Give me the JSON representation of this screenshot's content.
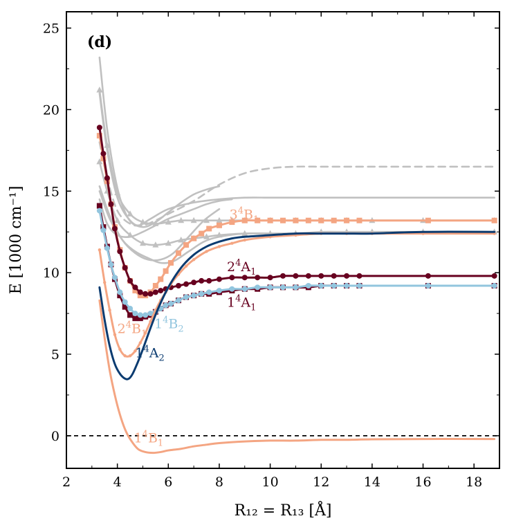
{
  "chart_data": {
    "type": "line",
    "panel_label": "(d)",
    "xlabel": "R₁₂ = R₁₃ [Å]",
    "ylabel": "E [1000 cm⁻¹]",
    "xlim": [
      2,
      19
    ],
    "ylim": [
      -2,
      26
    ],
    "xticks": [
      2,
      4,
      6,
      8,
      10,
      12,
      14,
      16,
      18
    ],
    "yticks": [
      0,
      5,
      10,
      15,
      20,
      25
    ],
    "zero_line": true,
    "colors": {
      "1 4B1": "#f4a582",
      "1 4A2": "#0b3b70",
      "2 4B1": "#f4a582",
      "1 4B2": "#92c5de",
      "1 4A1": "#67001f",
      "2 4A1": "#67001f",
      "3 4B1": "#f4a582",
      "gray": "#c0c0c0"
    },
    "series": [
      {
        "key": "g1",
        "color": "#c0c0c0",
        "style": "solid",
        "marker": "none",
        "x": [
          3.3,
          3.6,
          4.0,
          4.4,
          4.8,
          5.3,
          6.0,
          7.0,
          8.0,
          9.0,
          10.0,
          11.0,
          12.0,
          13.0,
          14.0,
          16.0,
          18.8
        ],
        "y": [
          23.2,
          18.8,
          15.2,
          13.4,
          12.9,
          13.3,
          13.9,
          14.3,
          14.5,
          14.6,
          14.6,
          14.6,
          14.6,
          14.6,
          14.6,
          14.6,
          14.6
        ]
      },
      {
        "key": "g2",
        "color": "#c0c0c0",
        "style": "dashed",
        "marker": "none",
        "x": [
          3.3,
          3.6,
          4.0,
          4.5,
          5.0,
          5.5,
          6.0,
          7.0,
          8.0,
          9.0,
          10.0,
          11.0,
          12.0,
          13.0,
          14.0,
          16.0,
          18.8
        ],
        "y": [
          18.0,
          15.8,
          13.8,
          13.0,
          12.9,
          13.2,
          13.6,
          14.4,
          15.4,
          16.1,
          16.4,
          16.5,
          16.5,
          16.5,
          16.5,
          16.5,
          16.5
        ]
      },
      {
        "key": "g3",
        "color": "#c0c0c0",
        "style": "solid",
        "marker": "none",
        "x": [
          3.3,
          3.6,
          4.0,
          4.5,
          5.0,
          5.5,
          6.0,
          6.5,
          7.0,
          7.5,
          8.0
        ],
        "y": [
          21.0,
          17.5,
          14.6,
          13.2,
          12.8,
          13.1,
          13.7,
          14.3,
          14.8,
          15.1,
          15.3
        ]
      },
      {
        "key": "g4",
        "color": "#c0c0c0",
        "style": "solid",
        "marker": "triangle",
        "x": [
          3.3,
          3.6,
          4.0,
          4.5,
          5.0,
          5.5,
          6.0,
          6.5,
          7.0,
          7.5,
          8.0,
          8.5,
          9.0,
          9.5,
          10.0,
          11.0,
          12.0,
          13.0,
          14.0,
          16.0,
          18.8
        ],
        "y": [
          21.2,
          17.8,
          14.9,
          13.6,
          13.1,
          13.0,
          13.1,
          13.2,
          13.2,
          13.2,
          13.2,
          13.2,
          13.2,
          13.2,
          13.2,
          13.2,
          13.2,
          13.2,
          13.2,
          13.2,
          13.2
        ]
      },
      {
        "key": "g5",
        "color": "#c0c0c0",
        "style": "solid",
        "marker": "none",
        "x": [
          3.3,
          3.7,
          4.2,
          4.7,
          5.2,
          5.7,
          6.2,
          6.8,
          7.4,
          8.0
        ],
        "y": [
          15.3,
          13.5,
          12.0,
          11.2,
          10.8,
          10.8,
          11.2,
          12.2,
          13.2,
          13.9
        ]
      },
      {
        "key": "g6",
        "color": "#c0c0c0",
        "style": "solid",
        "marker": "none",
        "x": [
          3.3,
          3.7,
          4.2,
          4.7,
          5.2,
          5.7,
          6.2,
          6.8,
          7.4,
          8.0,
          9.0,
          10.0,
          11.0,
          12.0,
          13.0,
          14.0,
          16.0,
          18.8
        ],
        "y": [
          15.0,
          13.3,
          12.0,
          11.3,
          10.9,
          10.6,
          10.7,
          11.3,
          11.9,
          12.2,
          12.4,
          12.4,
          12.4,
          12.4,
          12.4,
          12.4,
          12.4,
          12.4
        ]
      },
      {
        "key": "g7",
        "color": "#c0c0c0",
        "style": "solid",
        "marker": "triangle",
        "x": [
          3.3,
          3.6,
          4.0,
          4.5,
          5.0,
          5.5,
          6.0,
          6.5,
          7.0,
          7.5,
          8.0,
          9.0,
          10.0,
          11.0,
          12.0,
          13.0,
          14.0,
          16.0,
          18.8
        ],
        "y": [
          16.8,
          15.0,
          13.2,
          12.3,
          11.8,
          11.7,
          11.8,
          12.0,
          12.1,
          12.2,
          12.3,
          12.4,
          12.4,
          12.4,
          12.5,
          12.5,
          12.5,
          12.5,
          12.5
        ]
      },
      {
        "key": "g8",
        "color": "#c0c0c0",
        "style": "solid",
        "marker": "none",
        "x": [
          3.3,
          3.6,
          4.0,
          4.5,
          5.0,
          5.5,
          6.0,
          6.5,
          7.0,
          7.5,
          8.0,
          8.5
        ],
        "y": [
          14.5,
          13.0,
          12.3,
          12.2,
          12.5,
          12.9,
          13.3,
          13.6,
          13.9,
          14.2,
          14.4,
          14.5
        ]
      },
      {
        "key": "3 4B1",
        "color": "#f4a582",
        "style": "solid",
        "marker": "square",
        "x": [
          3.3,
          3.45,
          3.6,
          3.75,
          3.9,
          4.1,
          4.3,
          4.5,
          4.7,
          4.9,
          5.1,
          5.3,
          5.5,
          5.7,
          5.9,
          6.1,
          6.4,
          6.7,
          7.0,
          7.3,
          7.6,
          8.0,
          8.5,
          9.0,
          9.5,
          10.0,
          10.5,
          11.0,
          11.5,
          12.0,
          12.5,
          13.0,
          13.5,
          16.2,
          18.8
        ],
        "y": [
          18.4,
          17.0,
          15.6,
          14.2,
          12.8,
          11.4,
          10.3,
          9.5,
          8.9,
          8.6,
          8.6,
          8.8,
          9.2,
          9.6,
          10.1,
          10.6,
          11.2,
          11.7,
          12.1,
          12.4,
          12.7,
          12.9,
          13.1,
          13.2,
          13.2,
          13.2,
          13.2,
          13.2,
          13.2,
          13.2,
          13.2,
          13.2,
          13.2,
          13.2,
          13.2
        ]
      },
      {
        "key": "2 4A1",
        "color": "#67001f",
        "style": "solid",
        "marker": "circle",
        "x": [
          3.3,
          3.45,
          3.6,
          3.75,
          3.9,
          4.1,
          4.3,
          4.5,
          4.7,
          4.9,
          5.1,
          5.3,
          5.5,
          5.7,
          5.9,
          6.1,
          6.4,
          6.7,
          7.0,
          7.3,
          7.6,
          8.0,
          8.5,
          9.0,
          9.5,
          10.0,
          10.5,
          11.0,
          11.5,
          12.0,
          12.5,
          13.0,
          13.5,
          16.2,
          18.8
        ],
        "y": [
          18.9,
          17.3,
          15.8,
          14.2,
          12.7,
          11.3,
          10.3,
          9.5,
          9.1,
          8.8,
          8.7,
          8.7,
          8.8,
          8.9,
          9.0,
          9.1,
          9.2,
          9.3,
          9.4,
          9.5,
          9.5,
          9.6,
          9.7,
          9.7,
          9.7,
          9.7,
          9.8,
          9.8,
          9.8,
          9.8,
          9.8,
          9.8,
          9.8,
          9.8,
          9.8
        ]
      },
      {
        "key": "1 4A1",
        "color": "#67001f",
        "style": "solid",
        "marker": "square",
        "x": [
          3.3,
          3.45,
          3.6,
          3.75,
          3.9,
          4.1,
          4.3,
          4.5,
          4.7,
          4.9,
          5.1,
          5.3,
          5.5,
          5.7,
          5.9,
          6.1,
          6.4,
          6.7,
          7.0,
          7.3,
          7.6,
          8.0,
          8.5,
          9.0,
          9.5,
          10.0,
          10.5,
          11.0,
          11.5,
          12.0,
          12.5,
          13.0,
          13.5,
          16.2,
          18.8
        ],
        "y": [
          14.1,
          12.8,
          11.6,
          10.5,
          9.6,
          8.6,
          7.9,
          7.4,
          7.2,
          7.2,
          7.3,
          7.4,
          7.6,
          7.8,
          8.0,
          8.1,
          8.3,
          8.5,
          8.6,
          8.7,
          8.7,
          8.8,
          8.9,
          9.0,
          9.0,
          9.1,
          9.1,
          9.1,
          9.1,
          9.2,
          9.2,
          9.2,
          9.2,
          9.2,
          9.2
        ]
      },
      {
        "key": "1 4B2",
        "color": "#92c5de",
        "style": "solid",
        "marker": "circle",
        "x": [
          3.3,
          3.45,
          3.6,
          3.75,
          3.9,
          4.1,
          4.3,
          4.5,
          4.7,
          4.9,
          5.1,
          5.3,
          5.5,
          5.7,
          5.9,
          6.1,
          6.4,
          6.7,
          7.0,
          7.3,
          7.6,
          8.0,
          8.5,
          9.0,
          9.5,
          10.0,
          10.5,
          11.0,
          11.5,
          12.0,
          12.5,
          13.0,
          13.5,
          16.2,
          18.8
        ],
        "y": [
          13.8,
          12.6,
          11.5,
          10.5,
          9.7,
          8.8,
          8.2,
          7.8,
          7.5,
          7.4,
          7.4,
          7.5,
          7.6,
          7.8,
          8.0,
          8.1,
          8.3,
          8.5,
          8.6,
          8.7,
          8.8,
          8.9,
          9.0,
          9.0,
          9.1,
          9.1,
          9.1,
          9.1,
          9.2,
          9.2,
          9.2,
          9.2,
          9.2,
          9.2,
          9.2
        ]
      },
      {
        "key": "2 4B1",
        "color": "#f4a582",
        "style": "solid",
        "marker": "dot",
        "x": [
          3.3,
          3.5,
          3.7,
          3.9,
          4.1,
          4.3,
          4.5,
          4.7,
          4.9,
          5.1,
          5.3,
          5.5,
          5.7,
          5.9,
          6.1,
          6.4,
          6.7,
          7.0,
          7.5,
          8.0,
          8.5,
          9.0,
          10.0,
          11.0,
          12.0,
          13.0,
          14.0,
          16.0,
          18.8
        ],
        "y": [
          11.4,
          9.4,
          7.7,
          6.2,
          5.3,
          4.9,
          4.9,
          5.2,
          5.7,
          6.3,
          7.0,
          7.7,
          8.3,
          8.8,
          9.3,
          9.9,
          10.4,
          10.8,
          11.3,
          11.6,
          11.8,
          12.0,
          12.2,
          12.3,
          12.4,
          12.4,
          12.4,
          12.4,
          12.4
        ]
      },
      {
        "key": "1 4A2",
        "color": "#0b3b70",
        "style": "solid",
        "marker": "none",
        "x": [
          3.3,
          3.5,
          3.7,
          3.9,
          4.1,
          4.3,
          4.45,
          4.6,
          4.8,
          5.0,
          5.3,
          5.6,
          6.0,
          6.5,
          7.0,
          7.5,
          8.0,
          8.5,
          9.0,
          10.0,
          11.0,
          12.0,
          13.0,
          14.0,
          16.0,
          18.8
        ],
        "y": [
          9.1,
          7.1,
          5.5,
          4.4,
          3.8,
          3.5,
          3.5,
          3.8,
          4.5,
          5.3,
          6.6,
          7.8,
          9.1,
          10.3,
          11.1,
          11.6,
          11.9,
          12.1,
          12.2,
          12.3,
          12.4,
          12.4,
          12.4,
          12.4,
          12.5,
          12.5
        ]
      },
      {
        "key": "1 4B1",
        "color": "#f4a582",
        "style": "solid",
        "marker": "none",
        "x": [
          3.3,
          3.5,
          3.7,
          3.9,
          4.1,
          4.3,
          4.5,
          4.8,
          5.1,
          5.4,
          5.7,
          6.0,
          6.5,
          7.0,
          7.5,
          8.0,
          9.0,
          10.0,
          11.0,
          12.0,
          13.0,
          14.0,
          16.0,
          18.8
        ],
        "y": [
          8.3,
          6.0,
          4.0,
          2.5,
          1.3,
          0.4,
          -0.2,
          -0.8,
          -1.0,
          -1.05,
          -1.0,
          -0.9,
          -0.8,
          -0.65,
          -0.55,
          -0.45,
          -0.35,
          -0.3,
          -0.3,
          -0.25,
          -0.25,
          -0.22,
          -0.2,
          -0.2
        ]
      }
    ],
    "labels": [
      {
        "key": "3 4B1",
        "sup": "3",
        "mid": "4",
        "base": "B",
        "sub": "1",
        "x": 8.4,
        "y": 13.3,
        "color": "#f4a582"
      },
      {
        "key": "2 4A1",
        "sup": "2",
        "mid": "4",
        "base": "A",
        "sub": "1",
        "x": 8.3,
        "y": 10.1,
        "color": "#67001f"
      },
      {
        "key": "1 4A1",
        "sup": "1",
        "mid": "4",
        "base": "A",
        "sub": "1",
        "x": 8.3,
        "y": 7.9,
        "color": "#67001f"
      },
      {
        "key": "1 4B2",
        "sup": "1",
        "mid": "4",
        "base": "B",
        "sub": "2",
        "x": 5.45,
        "y": 6.6,
        "color": "#92c5de"
      },
      {
        "key": "2 4B1",
        "sup": "2",
        "mid": "4",
        "base": "B",
        "sub": "1",
        "x": 4.0,
        "y": 6.3,
        "color": "#f4a582"
      },
      {
        "key": "1 4A2",
        "sup": "1",
        "mid": "4",
        "base": "A",
        "sub": "2",
        "x": 4.7,
        "y": 4.8,
        "color": "#0b3b70"
      },
      {
        "key": "1 4B1",
        "sup": "1",
        "mid": "4",
        "base": "B",
        "sub": "1",
        "x": 4.65,
        "y": -0.4,
        "color": "#f4a582"
      }
    ]
  }
}
